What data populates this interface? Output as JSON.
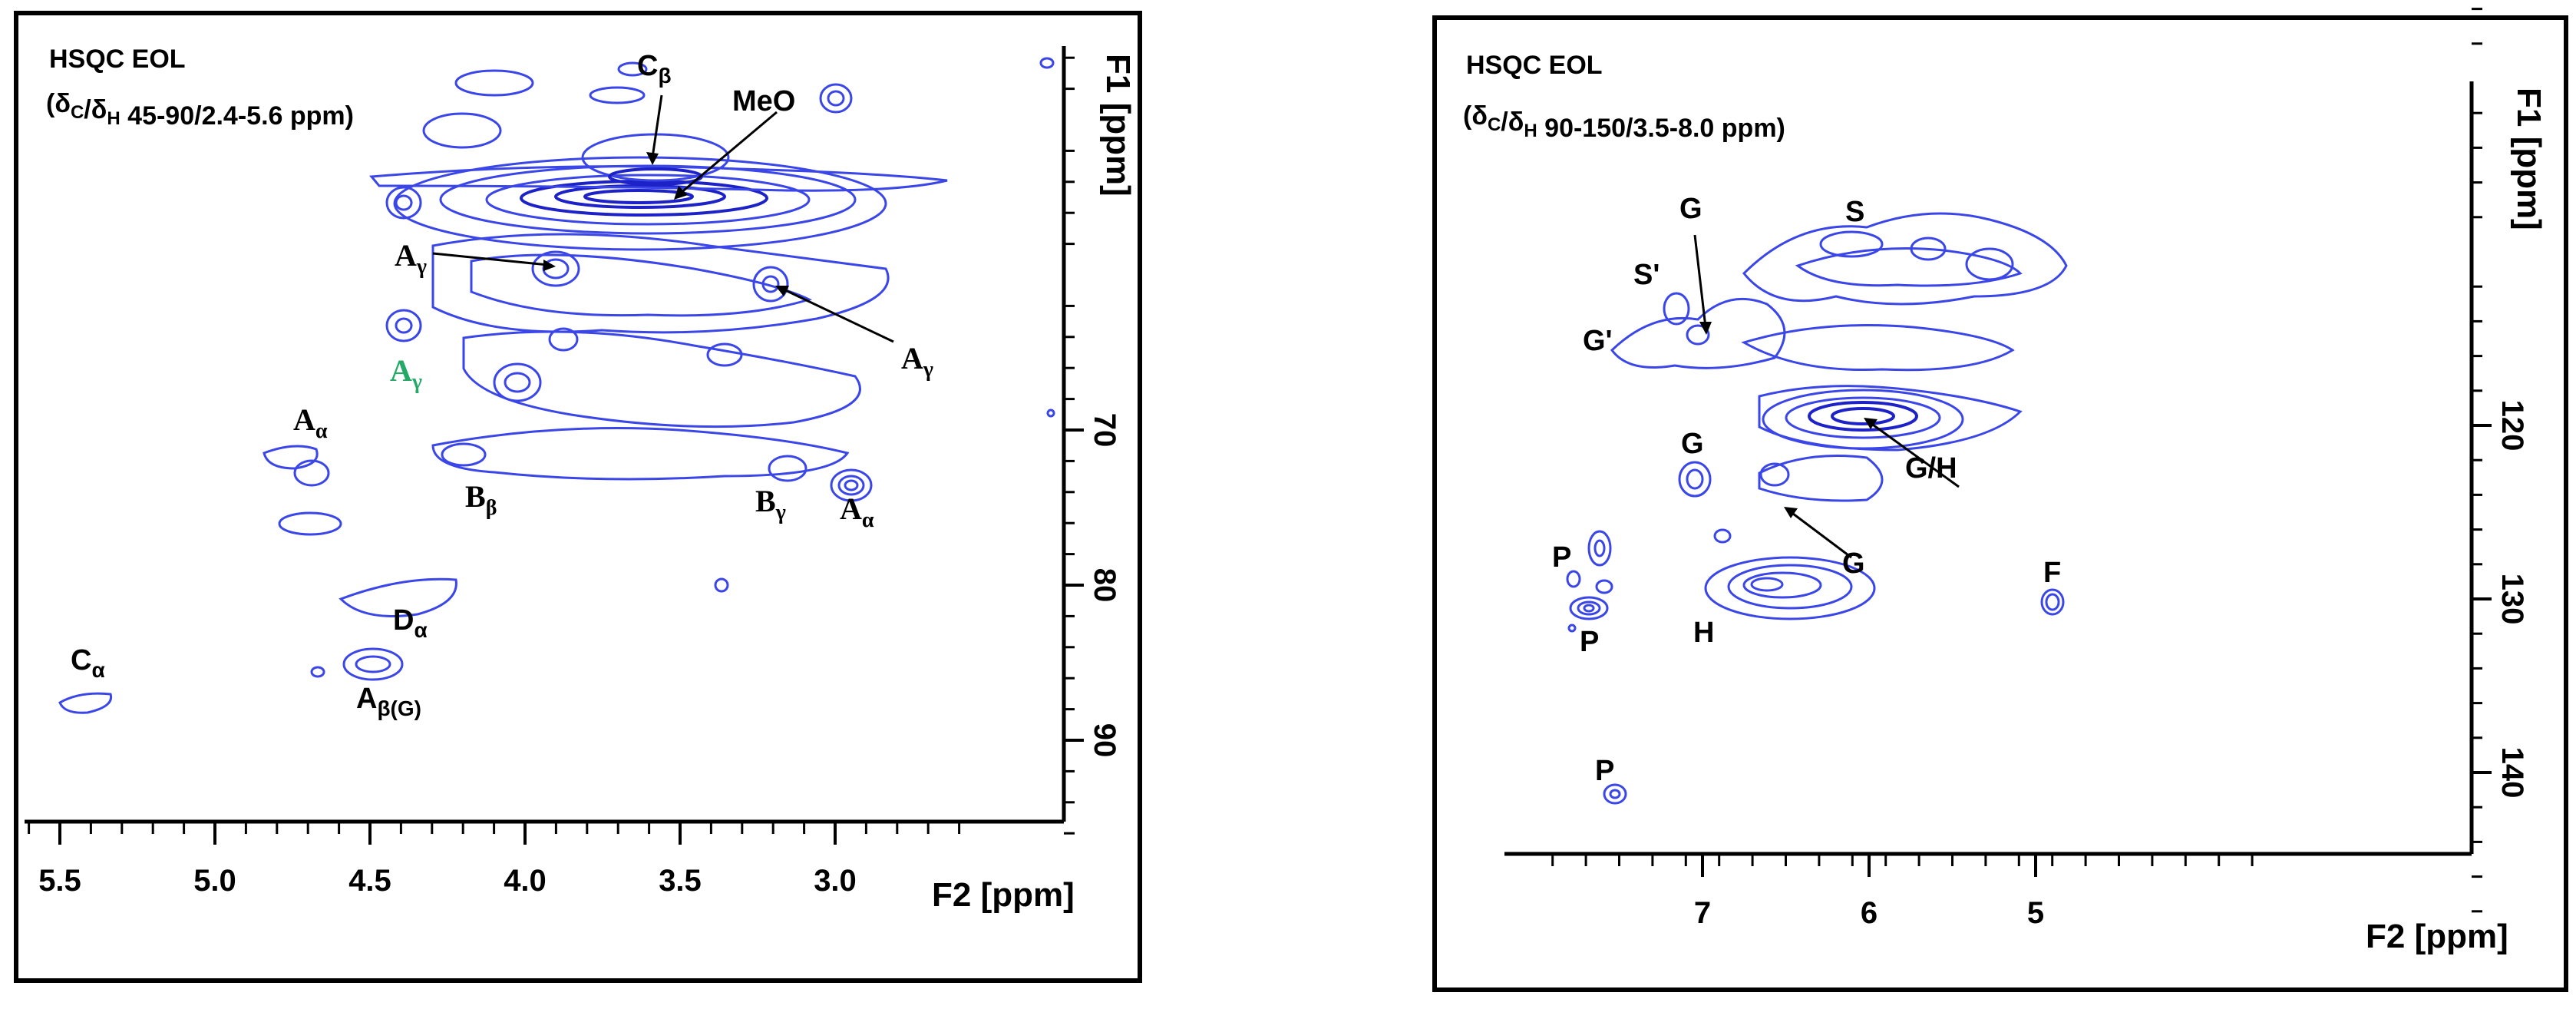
{
  "chart_data": [
    {
      "type": "heatmap",
      "title": "HSQC EOL",
      "subtitle": "(δC/δH 45-90/2.4-5.6 ppm)",
      "xlabel": "F2 [ppm]",
      "ylabel": "F1 [ppm]",
      "xlim": [
        5.65,
        2.4
      ],
      "ylim": [
        45.5,
        96
      ],
      "x_ticks": [
        "5.5",
        "5.0",
        "4.5",
        "4.0",
        "3.5",
        "3.0"
      ],
      "y_ticks": [
        "70",
        "80",
        "90"
      ],
      "peaks": [
        {
          "label": "Cβ",
          "x": 3.72,
          "y": 54.8
        },
        {
          "label": "MeO",
          "x": 3.74,
          "y": 56.2
        },
        {
          "label": "Aγ",
          "x": 3.98,
          "y": 59.8
        },
        {
          "label": "Aγ",
          "x": 3.3,
          "y": 60.5
        },
        {
          "label": "Aγ",
          "x": 4.45,
          "y": 63.2
        },
        {
          "label": "Aα",
          "x": 4.74,
          "y": 72.0
        },
        {
          "label": "Bβ",
          "x": 4.32,
          "y": 69.6
        },
        {
          "label": "Bγ",
          "x": 3.28,
          "y": 71.6
        },
        {
          "label": "Aα",
          "x": 3.12,
          "y": 72.3
        },
        {
          "label": "Dα",
          "x": 4.6,
          "y": 79.8
        },
        {
          "label": "Aβ(G)",
          "x": 4.58,
          "y": 84.2
        },
        {
          "label": "Cα",
          "x": 5.45,
          "y": 86.5
        }
      ]
    },
    {
      "type": "heatmap",
      "title": "HSQC EOL",
      "subtitle": "(δC/δH 90-150/3.5-8.0 ppm)",
      "xlabel": "F2 [ppm]",
      "ylabel": "F1 [ppm]",
      "xlim": [
        7.9,
        3.6
      ],
      "ylim": [
        89,
        150
      ],
      "x_ticks": [
        "7",
        "6",
        "5"
      ],
      "y_ticks": [
        "120",
        "130",
        "140"
      ],
      "peaks": [
        {
          "label": "S",
          "x": 6.52,
          "y": 104.0
        },
        {
          "label": "S'",
          "x": 7.12,
          "y": 106.5
        },
        {
          "label": "G",
          "x": 7.06,
          "y": 110.8
        },
        {
          "label": "G'",
          "x": 7.28,
          "y": 111.5
        },
        {
          "label": "G/H",
          "x": 6.62,
          "y": 115.2
        },
        {
          "label": "G",
          "x": 6.98,
          "y": 119.0
        },
        {
          "label": "G",
          "x": 6.74,
          "y": 121.0
        },
        {
          "label": "P",
          "x": 7.58,
          "y": 128.6
        },
        {
          "label": "P",
          "x": 7.48,
          "y": 129.6
        },
        {
          "label": "H",
          "x": 7.05,
          "y": 127.8
        },
        {
          "label": "F",
          "x": 5.26,
          "y": 129.5
        },
        {
          "label": "P",
          "x": 7.46,
          "y": 146.0
        }
      ]
    }
  ]
}
